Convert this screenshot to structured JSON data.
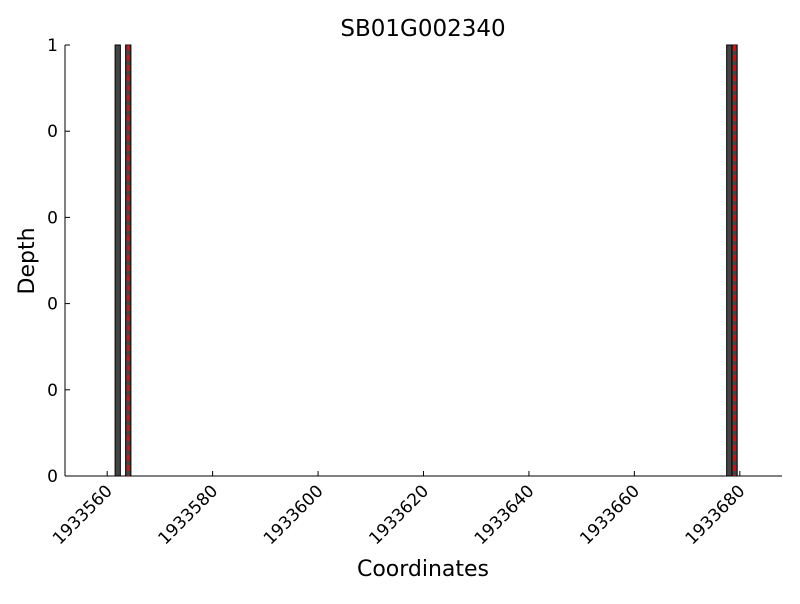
{
  "chart_data": {
    "type": "bar",
    "title": "SB01G002340",
    "x_label": "Coordinates",
    "y_label": "Depth",
    "x": [
      1933562,
      1933564,
      1933678,
      1933679
    ],
    "values": [
      1,
      1,
      1,
      1
    ],
    "bar_width": 1,
    "color": "#444444",
    "edge_color": "#000000",
    "highlight_x": [
      1933564,
      1933679
    ],
    "highlight_color": "#ff0000",
    "xlim": [
      1933552,
      1933688
    ],
    "xticks": [
      1933560,
      1933580,
      1933600,
      1933620,
      1933640,
      1933660,
      1933680
    ],
    "ylim": [
      0,
      1
    ],
    "yticks": [
      {
        "value": 0,
        "label": "0"
      },
      {
        "value": 0.2,
        "label": "0"
      },
      {
        "value": 0.4,
        "label": "0"
      },
      {
        "value": 0.6,
        "label": "0"
      },
      {
        "value": 0.8,
        "label": "0"
      },
      {
        "value": 1,
        "label": "1"
      }
    ],
    "grid": false
  }
}
